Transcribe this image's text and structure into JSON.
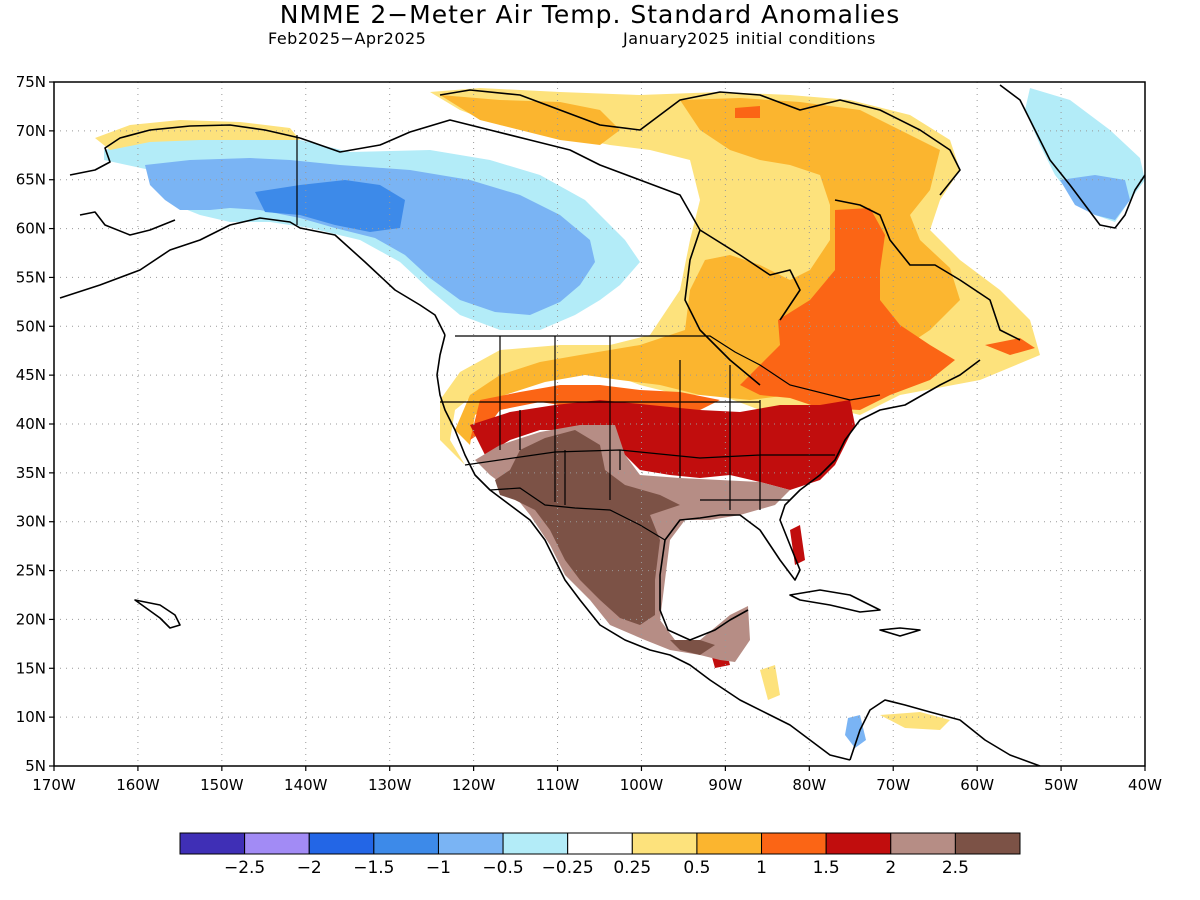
{
  "header": {
    "title": "NMME 2−Meter Air Temp. Standard Anomalies",
    "period": "Feb2025−Apr2025",
    "init": "January2025 initial conditions"
  },
  "axes": {
    "lat_labels": [
      "75N",
      "70N",
      "65N",
      "60N",
      "55N",
      "50N",
      "45N",
      "40N",
      "35N",
      "30N",
      "25N",
      "20N",
      "15N",
      "10N",
      "5N"
    ],
    "lat_values": [
      75,
      70,
      65,
      60,
      55,
      50,
      45,
      40,
      35,
      30,
      25,
      20,
      15,
      10,
      5
    ],
    "lon_labels": [
      "170W",
      "160W",
      "150W",
      "140W",
      "130W",
      "120W",
      "110W",
      "100W",
      "90W",
      "80W",
      "70W",
      "60W",
      "50W",
      "40W"
    ],
    "lon_values": [
      -170,
      -160,
      -150,
      -140,
      -130,
      -120,
      -110,
      -100,
      -90,
      -80,
      -70,
      -60,
      -50,
      -40
    ],
    "lat_range": [
      5,
      75
    ],
    "lon_range": [
      -170,
      -40
    ],
    "grid": "dotted"
  },
  "colorbar": {
    "colors": [
      "#3f2fb6",
      "#a28bf5",
      "#2366e6",
      "#3d8ae9",
      "#7ab4f4",
      "#b3ecf8",
      "#ffffff",
      "#fde27c",
      "#fbb52f",
      "#fb6515",
      "#c10d0d",
      "#b68d85",
      "#7c5246"
    ],
    "labels": [
      "−2.5",
      "−2",
      "−1.5",
      "−1",
      "−0.5",
      "−0.25",
      "0.25",
      "0.5",
      "1",
      "1.5",
      "2",
      "2.5"
    ]
  },
  "anomaly_regions": [
    {
      "category": "-0.25",
      "color": "#b3ecf8",
      "area": "Alaska and northwest Canada"
    },
    {
      "category": "-0.5",
      "color": "#7ab4f4",
      "area": "interior Alaska and Yukon"
    },
    {
      "category": "-1",
      "color": "#3d8ae9",
      "area": "Yukon core"
    },
    {
      "category": "-0.5",
      "color": "#7ab4f4",
      "area": "southern Greenland"
    },
    {
      "category": "0.25",
      "color": "#fde27c",
      "area": "northern plains and eastern Canada"
    },
    {
      "category": "0.5",
      "color": "#fbb52f",
      "area": "central and eastern Canada"
    },
    {
      "category": "1",
      "color": "#fb6515",
      "area": "Great Lakes and Quebec"
    },
    {
      "category": "1.5",
      "color": "#c10d0d",
      "area": "central and eastern United States"
    },
    {
      "category": "2",
      "color": "#b68d85",
      "area": "southwest United States and Mexico edges"
    },
    {
      "category": "2.5",
      "color": "#7c5246",
      "area": "southwest United States and Mexico"
    }
  ]
}
